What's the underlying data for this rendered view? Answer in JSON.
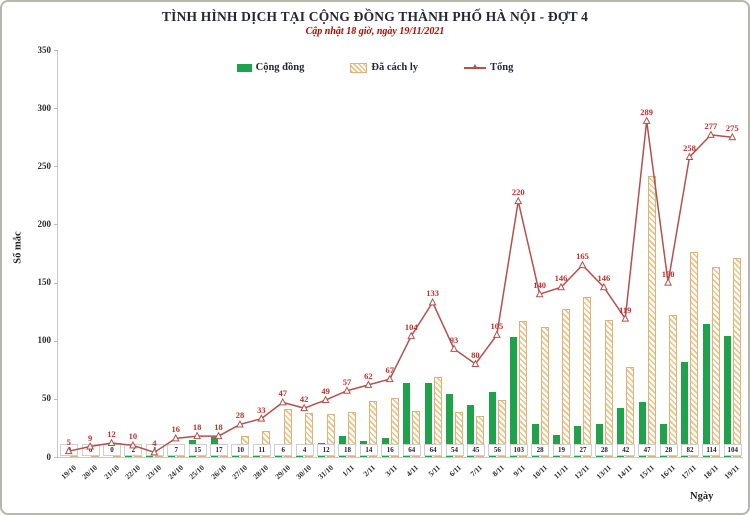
{
  "chart_data": {
    "type": "bar+line",
    "title": "TÌNH HÌNH DỊCH TẠI CỘNG ĐỒNG THÀNH PHỐ HÀ NỘI - ĐỢT 4",
    "subtitle": "Cập nhật 18 giờ, ngày 19/11/2021",
    "xlabel": "Ngày",
    "ylabel": "Số mắc",
    "ylim": [
      0,
      350
    ],
    "yticks": [
      0,
      50,
      100,
      150,
      200,
      250,
      300,
      350
    ],
    "grid": false,
    "legend_position": "top",
    "categories": [
      "19/10",
      "20/10",
      "21/10",
      "22/10",
      "23/10",
      "24/10",
      "25/10",
      "26/10",
      "27/10",
      "28/10",
      "29/10",
      "30/10",
      "31/10",
      "1/11",
      "2/11",
      "3/11",
      "4/11",
      "5/11",
      "6/11",
      "7/11",
      "8/11",
      "9/11",
      "10/11",
      "11/11",
      "12/11",
      "13/11",
      "14/11",
      "15/11",
      "16/11",
      "17/11",
      "18/11",
      "19/11"
    ],
    "series": [
      {
        "name": "Cộng đồng",
        "type": "bar",
        "color": "#1fa24c",
        "values": [
          0,
          0,
          0,
          2,
          1,
          7,
          15,
          17,
          10,
          11,
          6,
          4,
          12,
          18,
          14,
          16,
          64,
          64,
          54,
          45,
          56,
          103,
          28,
          19,
          27,
          28,
          42,
          47,
          28,
          82,
          114,
          104
        ],
        "labels_shown_at_base": true
      },
      {
        "name": "Đã cách ly",
        "type": "bar",
        "color": "#e9c389",
        "hatched": true,
        "values": [
          5,
          9,
          12,
          8,
          3,
          9,
          3,
          1,
          18,
          22,
          41,
          38,
          37,
          39,
          48,
          51,
          40,
          69,
          39,
          35,
          49,
          117,
          112,
          127,
          138,
          118,
          77,
          242,
          122,
          176,
          163,
          171
        ]
      },
      {
        "name": "Tổng",
        "type": "line",
        "color": "#b2524e",
        "marker": "open-triangle",
        "values": [
          5,
          9,
          12,
          10,
          4,
          16,
          18,
          18,
          28,
          33,
          47,
          42,
          49,
          57,
          62,
          67,
          104,
          133,
          93,
          80,
          105,
          220,
          140,
          146,
          165,
          146,
          119,
          289,
          150,
          258,
          277,
          275
        ],
        "labels_shown_above_points": true
      }
    ]
  }
}
